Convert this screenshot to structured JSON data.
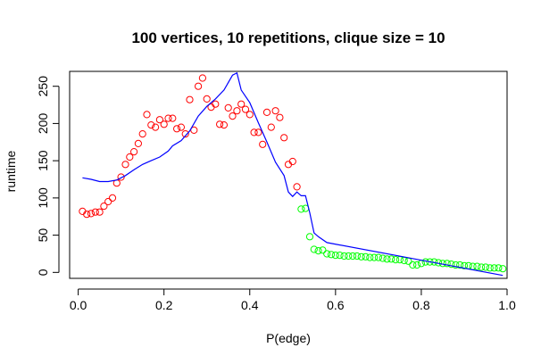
{
  "chart_data": {
    "type": "scatter",
    "title": "100 vertices, 10 repetitions, clique size = 10",
    "xlabel": "P(edge)",
    "ylabel": "runtime",
    "xlim": [
      -0.02,
      1.0
    ],
    "ylim": [
      -8,
      270
    ],
    "xticks": [
      "0.0",
      "0.2",
      "0.4",
      "0.6",
      "0.8",
      "1.0"
    ],
    "xtick_values": [
      0.0,
      0.2,
      0.4,
      0.6,
      0.8,
      1.0
    ],
    "yticks": [
      "0",
      "50",
      "100",
      "150",
      "200",
      "250"
    ],
    "ytick_values": [
      0,
      50,
      100,
      150,
      200,
      250
    ],
    "grid": false,
    "series": [
      {
        "marker": "open-circle",
        "color": "#ff0000",
        "x": [
          0.01,
          0.02,
          0.03,
          0.04,
          0.05,
          0.06,
          0.07,
          0.08,
          0.09,
          0.1,
          0.11,
          0.12,
          0.13,
          0.14,
          0.15,
          0.16,
          0.17,
          0.18,
          0.19,
          0.2,
          0.21,
          0.22,
          0.23,
          0.24,
          0.25,
          0.26,
          0.27,
          0.28,
          0.29,
          0.3,
          0.31,
          0.32,
          0.33,
          0.34,
          0.35,
          0.36,
          0.37,
          0.38,
          0.39,
          0.4,
          0.41,
          0.42,
          0.43,
          0.44,
          0.45,
          0.46,
          0.47,
          0.48,
          0.49,
          0.5,
          0.51
        ],
        "y": [
          82,
          78,
          79,
          81,
          81,
          89,
          95,
          100,
          120,
          128,
          145,
          155,
          162,
          173,
          186,
          212,
          198,
          195,
          205,
          199,
          207,
          207,
          193,
          195,
          186,
          232,
          191,
          250,
          261,
          233,
          222,
          226,
          199,
          198,
          221,
          210,
          217,
          226,
          219,
          212,
          188,
          188,
          172,
          215,
          195,
          217,
          208,
          181,
          145,
          149,
          115
        ]
      },
      {
        "marker": "open-circle",
        "color": "#00ff00",
        "x": [
          0.52,
          0.53,
          0.54,
          0.55,
          0.56,
          0.57,
          0.58,
          0.59,
          0.6,
          0.61,
          0.62,
          0.63,
          0.64,
          0.65,
          0.66,
          0.67,
          0.68,
          0.69,
          0.7,
          0.71,
          0.72,
          0.73,
          0.74,
          0.75,
          0.76,
          0.77,
          0.78,
          0.79,
          0.8,
          0.81,
          0.82,
          0.83,
          0.84,
          0.85,
          0.86,
          0.87,
          0.88,
          0.89,
          0.9,
          0.91,
          0.92,
          0.93,
          0.94,
          0.95,
          0.96,
          0.97,
          0.98,
          0.99
        ],
        "y": [
          85,
          86,
          48,
          31,
          29,
          30,
          25,
          24,
          23,
          23,
          22,
          22,
          22,
          22,
          21,
          21,
          20,
          20,
          20,
          19,
          18,
          18,
          17,
          17,
          16,
          15,
          10,
          10,
          12,
          14,
          14,
          14,
          13,
          12,
          12,
          11,
          10,
          10,
          9,
          9,
          8,
          8,
          7,
          7,
          6,
          6,
          6,
          5
        ]
      },
      {
        "marker": "line",
        "color": "#0000ff",
        "x": [
          0.01,
          0.03,
          0.05,
          0.07,
          0.09,
          0.11,
          0.13,
          0.15,
          0.17,
          0.19,
          0.21,
          0.22,
          0.24,
          0.26,
          0.28,
          0.3,
          0.32,
          0.34,
          0.36,
          0.37,
          0.38,
          0.4,
          0.42,
          0.44,
          0.46,
          0.48,
          0.49,
          0.5,
          0.51,
          0.52,
          0.53,
          0.54,
          0.55,
          0.56,
          0.58,
          0.99
        ],
        "y": [
          127,
          125,
          122,
          122,
          124,
          130,
          138,
          145,
          150,
          155,
          163,
          170,
          177,
          190,
          210,
          223,
          233,
          245,
          265,
          268,
          245,
          228,
          201,
          175,
          148,
          130,
          108,
          102,
          108,
          103,
          103,
          80,
          53,
          48,
          40,
          -4
        ]
      }
    ]
  }
}
